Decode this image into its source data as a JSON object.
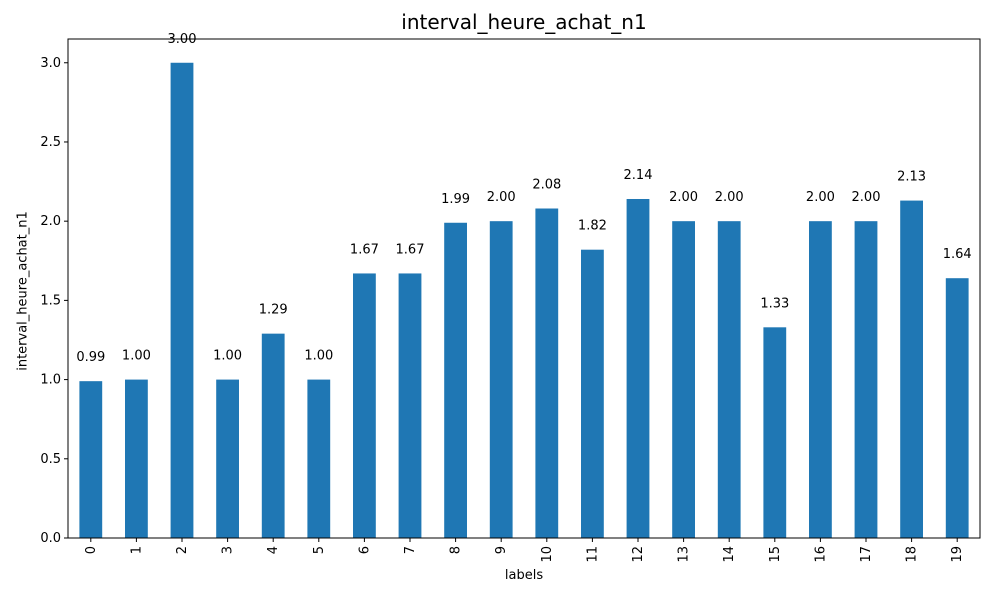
{
  "chart_data": {
    "type": "bar",
    "title": "interval_heure_achat_n1",
    "xlabel": "labels",
    "ylabel": "interval_heure_achat_n1",
    "categories": [
      "0",
      "1",
      "2",
      "3",
      "4",
      "5",
      "6",
      "7",
      "8",
      "9",
      "10",
      "11",
      "12",
      "13",
      "14",
      "15",
      "16",
      "17",
      "18",
      "19"
    ],
    "values": [
      0.99,
      1.0,
      3.0,
      1.0,
      1.29,
      1.0,
      1.67,
      1.67,
      1.99,
      2.0,
      2.08,
      1.82,
      2.14,
      2.0,
      2.0,
      1.33,
      2.0,
      2.0,
      2.13,
      1.64
    ],
    "data_labels": [
      "0.99",
      "1.00",
      "3.00",
      "1.00",
      "1.29",
      "1.00",
      "1.67",
      "1.67",
      "1.99",
      "2.00",
      "2.08",
      "1.82",
      "2.14",
      "2.00",
      "2.00",
      "1.33",
      "2.00",
      "2.00",
      "2.13",
      "1.64"
    ],
    "yticks": [
      "0.0",
      "0.5",
      "1.0",
      "1.5",
      "2.0",
      "2.5",
      "3.0"
    ],
    "ylim": [
      0,
      3.15
    ],
    "bar_color": "#1f77b4",
    "grid": false,
    "legend": "none"
  }
}
